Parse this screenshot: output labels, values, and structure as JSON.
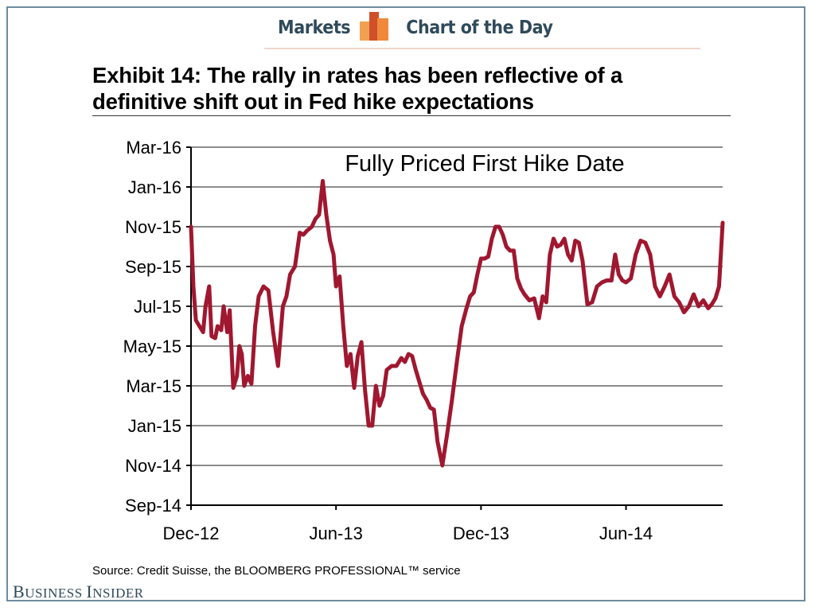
{
  "header": {
    "left_label": "Markets",
    "right_label": "Chart of the Day",
    "logo_icon": "bar-chart-logo-icon",
    "logo_colors": [
      "#f0a050",
      "#d0502a",
      "#f08a3a"
    ]
  },
  "title": {
    "line1": "Exhibit 14: The rally in rates has been reflective of a",
    "line2": "definitive shift out in Fed hike expectations"
  },
  "source": "Source: Credit Suisse, the BLOOMBERG PROFESSIONAL™ service",
  "branding": {
    "first": "B",
    "first_rest": "USINESS ",
    "second": "I",
    "second_rest": "NSIDER"
  },
  "colors": {
    "line": "#a0172f",
    "grid": "#8c8c8c",
    "frame": "#6d8c9c",
    "header_text": "#2f4a5a"
  },
  "chart_data": {
    "type": "line",
    "title": "Fully Priced First Hike Date",
    "xlabel": "",
    "ylabel": "",
    "x_unit": "months since Dec-12",
    "y_unit": "months since Sep-14",
    "xlim": [
      0,
      22
    ],
    "ylim": [
      0,
      18
    ],
    "x_ticks": [
      {
        "value": 0,
        "label": "Dec-12"
      },
      {
        "value": 6,
        "label": "Jun-13"
      },
      {
        "value": 12,
        "label": "Dec-13"
      },
      {
        "value": 18,
        "label": "Jun-14"
      }
    ],
    "y_ticks": [
      {
        "value": 0,
        "label": "Sep-14"
      },
      {
        "value": 2,
        "label": "Nov-14"
      },
      {
        "value": 4,
        "label": "Jan-15"
      },
      {
        "value": 6,
        "label": "Mar-15"
      },
      {
        "value": 8,
        "label": "May-15"
      },
      {
        "value": 10,
        "label": "Jul-15"
      },
      {
        "value": 12,
        "label": "Sep-15"
      },
      {
        "value": 14,
        "label": "Nov-15"
      },
      {
        "value": 16,
        "label": "Jan-16"
      },
      {
        "value": 18,
        "label": "Mar-16"
      }
    ],
    "grid": true,
    "series": [
      {
        "name": "Fully Priced First Hike Date",
        "x": [
          0,
          0.1,
          0.2,
          0.35,
          0.5,
          0.6,
          0.75,
          0.85,
          1.0,
          1.1,
          1.25,
          1.35,
          1.5,
          1.6,
          1.75,
          1.9,
          2.0,
          2.1,
          2.2,
          2.35,
          2.5,
          2.65,
          2.8,
          3.0,
          3.2,
          3.4,
          3.6,
          3.8,
          3.95,
          4.1,
          4.3,
          4.5,
          4.65,
          4.8,
          5.0,
          5.15,
          5.3,
          5.45,
          5.6,
          5.75,
          5.9,
          6.0,
          6.15,
          6.3,
          6.45,
          6.6,
          6.75,
          6.9,
          7.05,
          7.2,
          7.35,
          7.5,
          7.65,
          7.8,
          7.95,
          8.1,
          8.3,
          8.5,
          8.7,
          8.85,
          9.0,
          9.15,
          9.3,
          9.45,
          9.6,
          9.75,
          9.9,
          10.05,
          10.2,
          10.4,
          10.6,
          10.8,
          11.0,
          11.2,
          11.4,
          11.55,
          11.7,
          11.85,
          12.0,
          12.15,
          12.3,
          12.45,
          12.6,
          12.75,
          12.9,
          13.05,
          13.2,
          13.35,
          13.5,
          13.65,
          13.8,
          14.0,
          14.2,
          14.4,
          14.55,
          14.7,
          14.85,
          15.0,
          15.15,
          15.3,
          15.45,
          15.6,
          15.75,
          15.9,
          16.05,
          16.2,
          16.4,
          16.6,
          16.8,
          17.0,
          17.2,
          17.4,
          17.55,
          17.7,
          17.85,
          18.0,
          18.2,
          18.4,
          18.6,
          18.8,
          19.0,
          19.2,
          19.4,
          19.6,
          19.8,
          20.0,
          20.2,
          20.4,
          20.6,
          20.8,
          21.0,
          21.2,
          21.4,
          21.55,
          21.7,
          21.85,
          22.0
        ],
        "y": [
          14.0,
          11.0,
          9.3,
          9.0,
          8.7,
          10.0,
          11.0,
          8.5,
          8.4,
          9.0,
          8.8,
          10.0,
          8.7,
          9.8,
          5.9,
          6.5,
          8.0,
          7.6,
          6.0,
          6.5,
          6.1,
          9.0,
          10.5,
          11.0,
          10.8,
          8.7,
          7.0,
          10.0,
          10.5,
          11.6,
          12.0,
          13.7,
          13.6,
          13.8,
          14.0,
          14.4,
          14.6,
          16.3,
          14.6,
          13.3,
          12.6,
          11.0,
          11.5,
          9.0,
          7.0,
          7.6,
          5.9,
          7.5,
          8.2,
          5.8,
          4.0,
          4.0,
          6.0,
          5.0,
          5.5,
          6.8,
          7.0,
          7.0,
          7.4,
          7.2,
          7.6,
          7.5,
          6.8,
          6.2,
          5.6,
          5.3,
          4.9,
          4.8,
          3.2,
          2.0,
          3.6,
          5.3,
          7.2,
          9.0,
          9.9,
          10.5,
          10.7,
          11.6,
          12.4,
          12.4,
          12.5,
          13.4,
          14.0,
          14.0,
          13.6,
          13.0,
          12.8,
          12.8,
          11.4,
          10.9,
          10.6,
          10.3,
          10.4,
          9.4,
          10.5,
          10.2,
          12.6,
          13.4,
          13.0,
          13.1,
          13.4,
          12.6,
          12.3,
          13.3,
          13.2,
          12.3,
          10.1,
          10.2,
          11.0,
          11.2,
          11.3,
          11.3,
          12.6,
          11.6,
          11.3,
          11.2,
          11.4,
          12.6,
          13.3,
          13.2,
          12.6,
          11.0,
          10.5,
          11.0,
          11.6,
          10.5,
          10.2,
          9.7,
          10.0,
          10.6,
          10.0,
          10.3,
          9.9,
          10.1,
          10.4,
          11.0,
          14.2
        ]
      }
    ]
  }
}
